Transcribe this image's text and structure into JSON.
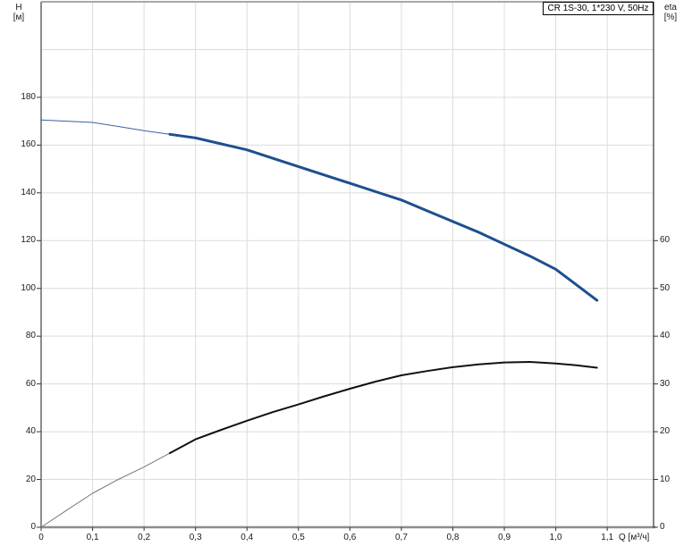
{
  "title_box": {
    "label": "CR 1S-30, 1*230 V, 50Hz"
  },
  "axis_titles": {
    "left_name": "H",
    "left_unit": "[м]",
    "right_name": "eta",
    "right_unit": "[%]",
    "bottom": "Q [м³/ч]"
  },
  "colors": {
    "grid": "#dcdcdc",
    "frame_gray": "#8c8c8c",
    "frame_dark": "#333333",
    "tick": "#333333",
    "head_curve": "#1c4f8f",
    "head_curve_thin": "#3a62a0",
    "eff_curve": "#111111",
    "eff_curve_thin": "#777777"
  },
  "chart_data": {
    "type": "line",
    "title": "CR 1S-30, 1*230 V, 50Hz",
    "xlabel": "Q [м³/ч]",
    "ylabel_left": "H [м]",
    "ylabel_right": "eta [%]",
    "x_range": [
      0,
      1.19
    ],
    "y_left_range": [
      0,
      220
    ],
    "y_right_range": [
      0,
      110
    ],
    "grid": true,
    "x_ticks": {
      "values": [
        0,
        0.1,
        0.2,
        0.3,
        0.4,
        0.5,
        0.6,
        0.7,
        0.8,
        0.9,
        1.0,
        1.1
      ],
      "labels": [
        "0",
        "0,1",
        "0,2",
        "0,3",
        "0,4",
        "0,5",
        "0,6",
        "0,7",
        "0,8",
        "0,9",
        "1,0",
        "1,1"
      ]
    },
    "y_left_ticks": [
      0,
      20,
      40,
      60,
      80,
      100,
      120,
      140,
      160,
      180
    ],
    "y_right_ticks": [
      0,
      10,
      20,
      30,
      40,
      50,
      60
    ],
    "grid_y_left": [
      20,
      40,
      60,
      80,
      100,
      120,
      140,
      160,
      180,
      200
    ],
    "series": [
      {
        "name": "head-curve",
        "axis": "left",
        "units": "м",
        "split_x": 0.29,
        "x": [
          0,
          0.05,
          0.1,
          0.15,
          0.2,
          0.25,
          0.3,
          0.35,
          0.4,
          0.45,
          0.5,
          0.55,
          0.6,
          0.65,
          0.7,
          0.75,
          0.8,
          0.85,
          0.9,
          0.95,
          1.0,
          1.04,
          1.08
        ],
        "y": [
          170.5,
          170,
          169.5,
          167.8,
          166,
          164.5,
          163,
          160.5,
          158,
          154.5,
          151,
          147.5,
          144,
          140.5,
          137,
          132.5,
          128,
          123.5,
          118.5,
          113.5,
          108,
          101.5,
          95
        ]
      },
      {
        "name": "efficiency-curve",
        "axis": "right",
        "units": "%",
        "split_x": 0.3,
        "x": [
          0,
          0.05,
          0.1,
          0.15,
          0.2,
          0.25,
          0.3,
          0.35,
          0.4,
          0.45,
          0.5,
          0.55,
          0.6,
          0.65,
          0.7,
          0.75,
          0.8,
          0.85,
          0.9,
          0.95,
          1.0,
          1.04,
          1.08
        ],
        "y": [
          0,
          3.6,
          7.1,
          10,
          12.6,
          15.5,
          18.4,
          20.4,
          22.3,
          24.1,
          25.7,
          27.4,
          29,
          30.5,
          31.8,
          32.7,
          33.5,
          34.1,
          34.5,
          34.6,
          34.3,
          33.9,
          33.4
        ]
      }
    ]
  }
}
